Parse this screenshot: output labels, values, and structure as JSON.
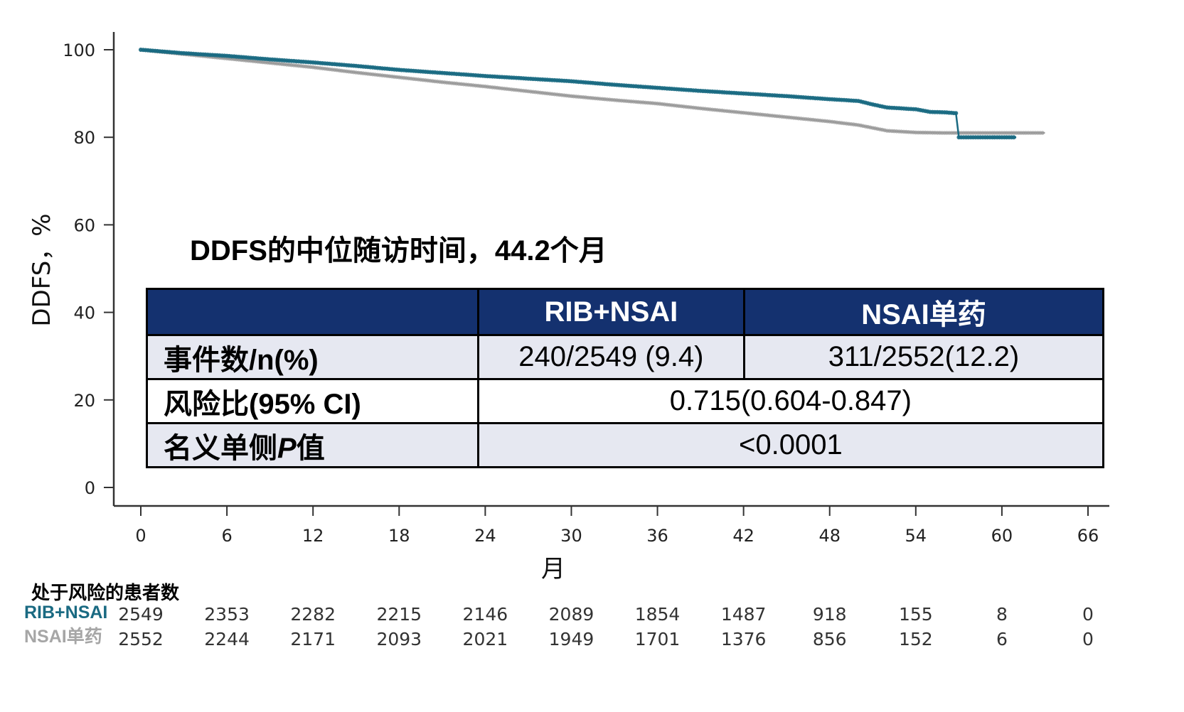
{
  "chart_data": {
    "type": "line",
    "title": "",
    "xlabel": "月",
    "ylabel": "DDFS，%",
    "xlim": [
      0,
      66
    ],
    "ylim": [
      0,
      100
    ],
    "xticks": [
      0,
      6,
      12,
      18,
      24,
      30,
      36,
      42,
      48,
      54,
      60,
      66
    ],
    "yticks": [
      0,
      20,
      40,
      60,
      80,
      100
    ],
    "grid": false,
    "series": [
      {
        "name": "RIB+NSAI",
        "color": "#1a6a82",
        "x": [
          0,
          3,
          6,
          9,
          12,
          15,
          18,
          21,
          24,
          27,
          30,
          33,
          36,
          39,
          42,
          45,
          48,
          50,
          51,
          52,
          54,
          55,
          56,
          56.8,
          57,
          60,
          61
        ],
        "y": [
          100,
          99.2,
          98.6,
          97.8,
          97.1,
          96.3,
          95.4,
          94.7,
          94.0,
          93.4,
          92.8,
          92.0,
          91.3,
          90.6,
          90.0,
          89.4,
          88.7,
          88.3,
          87.5,
          86.8,
          86.4,
          85.8,
          85.7,
          85.5,
          80.0,
          80.0,
          80.0
        ]
      },
      {
        "name": "NSAI单药",
        "color": "#999999",
        "x": [
          0,
          3,
          6,
          9,
          12,
          15,
          18,
          21,
          24,
          27,
          30,
          33,
          36,
          39,
          42,
          45,
          48,
          50,
          52,
          54,
          56,
          58,
          60,
          63
        ],
        "y": [
          100,
          99.0,
          98.0,
          97.0,
          96.0,
          94.8,
          93.7,
          92.6,
          91.6,
          90.5,
          89.4,
          88.5,
          87.7,
          86.6,
          85.6,
          84.6,
          83.6,
          82.8,
          81.5,
          81.1,
          81.0,
          81.0,
          81.0,
          81.0
        ]
      }
    ]
  },
  "note": {
    "text": "DDFS的中位随访时间，44.2个月"
  },
  "table": {
    "headers": [
      "",
      "RIB+NSAI",
      "NSAI单药"
    ],
    "rows": {
      "events_label": "事件数/n(%)",
      "events_rib": "240/2549 (9.4)",
      "events_nsai": "311/2552(12.2)",
      "hr_label": "风险比(95% CI)",
      "hr_value": "0.715(0.604-0.847)",
      "p_label_pre": "名义单侧",
      "p_label_p": "P",
      "p_label_post": "值",
      "p_value": "<0.0001"
    }
  },
  "risk_table": {
    "title": "处于风险的患者数",
    "arm1_label": "RIB+NSAI",
    "arm2_label": "NSAI单药",
    "arm1": [
      "2549",
      "2353",
      "2282",
      "2215",
      "2146",
      "2089",
      "1854",
      "1487",
      "918",
      "155",
      "8",
      "0"
    ],
    "arm2": [
      "2552",
      "2244",
      "2171",
      "2093",
      "2021",
      "1949",
      "1701",
      "1376",
      "856",
      "152",
      "6",
      "0"
    ]
  }
}
